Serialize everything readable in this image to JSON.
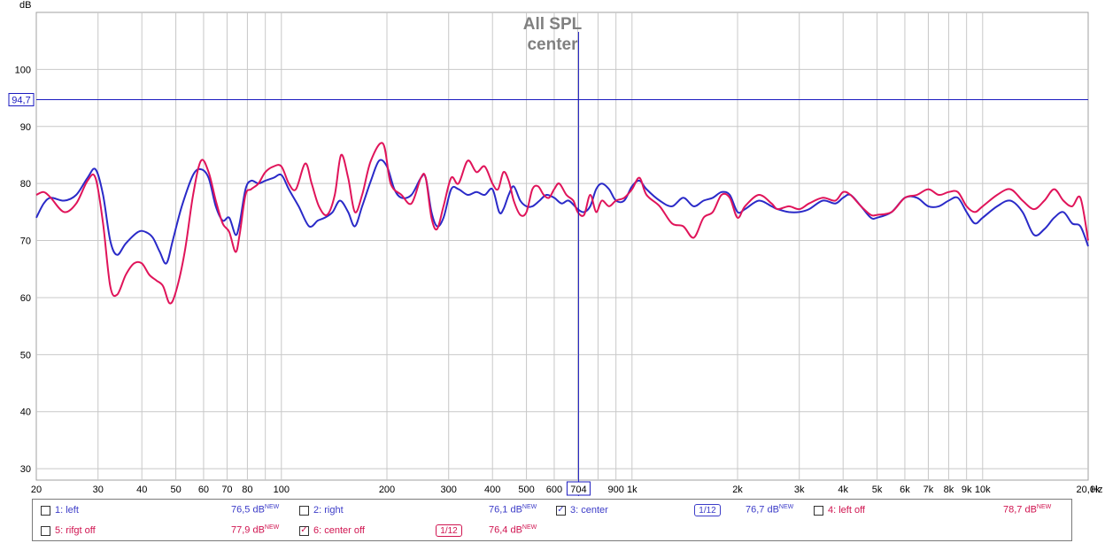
{
  "chart_data": {
    "type": "line",
    "title": "All SPL",
    "subtitle": "center",
    "ylabel": "dB",
    "xunit": "Hz",
    "xscale": "log",
    "xlim": [
      20,
      20000
    ],
    "ylim": [
      28,
      110
    ],
    "yticks": [
      30,
      40,
      50,
      60,
      70,
      80,
      90,
      100
    ],
    "xticks": [
      {
        "v": 20,
        "label": "20"
      },
      {
        "v": 30,
        "label": "30"
      },
      {
        "v": 40,
        "label": "40"
      },
      {
        "v": 50,
        "label": "50"
      },
      {
        "v": 60,
        "label": "60"
      },
      {
        "v": 70,
        "label": "70"
      },
      {
        "v": 80,
        "label": "80"
      },
      {
        "v": 100,
        "label": "100"
      },
      {
        "v": 200,
        "label": "200"
      },
      {
        "v": 300,
        "label": "300"
      },
      {
        "v": 400,
        "label": "400"
      },
      {
        "v": 500,
        "label": "500"
      },
      {
        "v": 600,
        "label": "600"
      },
      {
        "v": 900,
        "label": "900"
      },
      {
        "v": 1000,
        "label": "1k"
      },
      {
        "v": 2000,
        "label": "2k"
      },
      {
        "v": 3000,
        "label": "3k"
      },
      {
        "v": 4000,
        "label": "4k"
      },
      {
        "v": 5000,
        "label": "5k"
      },
      {
        "v": 6000,
        "label": "6k"
      },
      {
        "v": 7000,
        "label": "7k"
      },
      {
        "v": 8000,
        "label": "8k"
      },
      {
        "v": 9000,
        "label": "9k"
      },
      {
        "v": 10000,
        "label": "10k"
      },
      {
        "v": 20000,
        "label": "20,0k"
      }
    ],
    "grid": true,
    "cursor": {
      "x": 704,
      "x_label": "704",
      "y": 94.7,
      "y_label": "94,7"
    },
    "series": [
      {
        "name": "3: center",
        "color": "#2a2ac8",
        "points": [
          [
            20,
            74
          ],
          [
            21,
            76.5
          ],
          [
            22,
            77.5
          ],
          [
            24,
            77
          ],
          [
            26,
            78
          ],
          [
            28,
            81
          ],
          [
            29.5,
            82.5
          ],
          [
            31,
            78
          ],
          [
            32.5,
            70
          ],
          [
            34,
            67.5
          ],
          [
            36,
            69.5
          ],
          [
            39,
            71.5
          ],
          [
            41,
            71.5
          ],
          [
            43,
            70.5
          ],
          [
            45,
            68
          ],
          [
            47,
            66
          ],
          [
            49,
            70
          ],
          [
            52,
            76
          ],
          [
            56,
            81.5
          ],
          [
            59,
            82.5
          ],
          [
            62,
            81
          ],
          [
            65,
            76
          ],
          [
            68,
            73.5
          ],
          [
            71,
            74
          ],
          [
            74,
            71
          ],
          [
            76,
            73
          ],
          [
            79,
            79
          ],
          [
            82,
            80.5
          ],
          [
            86,
            80
          ],
          [
            90,
            80.5
          ],
          [
            95,
            81
          ],
          [
            100,
            81.5
          ],
          [
            105,
            79
          ],
          [
            112,
            76
          ],
          [
            120,
            72.5
          ],
          [
            127,
            73.5
          ],
          [
            133,
            74
          ],
          [
            140,
            75
          ],
          [
            147,
            77
          ],
          [
            155,
            75
          ],
          [
            162,
            72.5
          ],
          [
            170,
            76
          ],
          [
            180,
            80.5
          ],
          [
            190,
            84
          ],
          [
            200,
            83
          ],
          [
            210,
            79
          ],
          [
            220,
            77.5
          ],
          [
            235,
            78
          ],
          [
            250,
            81
          ],
          [
            258,
            81
          ],
          [
            268,
            75
          ],
          [
            278,
            72.5
          ],
          [
            290,
            74
          ],
          [
            305,
            79
          ],
          [
            320,
            79
          ],
          [
            340,
            78
          ],
          [
            360,
            78.5
          ],
          [
            380,
            78
          ],
          [
            400,
            79
          ],
          [
            418,
            75
          ],
          [
            430,
            75.5
          ],
          [
            445,
            78
          ],
          [
            460,
            79.5
          ],
          [
            480,
            77
          ],
          [
            500,
            76
          ],
          [
            520,
            76
          ],
          [
            545,
            77
          ],
          [
            570,
            78
          ],
          [
            600,
            77.5
          ],
          [
            630,
            76.5
          ],
          [
            660,
            77
          ],
          [
            700,
            75.5
          ],
          [
            730,
            75
          ],
          [
            760,
            76
          ],
          [
            790,
            79
          ],
          [
            820,
            80
          ],
          [
            860,
            79
          ],
          [
            900,
            77
          ],
          [
            950,
            77
          ],
          [
            1000,
            79.5
          ],
          [
            1050,
            80.5
          ],
          [
            1100,
            79
          ],
          [
            1200,
            77
          ],
          [
            1300,
            76
          ],
          [
            1400,
            77.5
          ],
          [
            1500,
            76
          ],
          [
            1600,
            77
          ],
          [
            1700,
            77.5
          ],
          [
            1800,
            78.5
          ],
          [
            1900,
            78
          ],
          [
            2000,
            75
          ],
          [
            2100,
            75.5
          ],
          [
            2300,
            77
          ],
          [
            2500,
            76
          ],
          [
            2600,
            75.5
          ],
          [
            2800,
            75
          ],
          [
            3000,
            75
          ],
          [
            3200,
            75.5
          ],
          [
            3500,
            77
          ],
          [
            3800,
            76.5
          ],
          [
            4000,
            77.5
          ],
          [
            4200,
            78
          ],
          [
            4500,
            76
          ],
          [
            4800,
            74
          ],
          [
            5000,
            74
          ],
          [
            5500,
            75
          ],
          [
            6000,
            77.5
          ],
          [
            6500,
            77.5
          ],
          [
            7000,
            76
          ],
          [
            7500,
            76
          ],
          [
            8000,
            77
          ],
          [
            8500,
            77.5
          ],
          [
            9000,
            75
          ],
          [
            9500,
            73
          ],
          [
            10000,
            74
          ],
          [
            11000,
            76
          ],
          [
            12000,
            77
          ],
          [
            13000,
            75
          ],
          [
            14000,
            71
          ],
          [
            15000,
            72
          ],
          [
            16000,
            74
          ],
          [
            17000,
            75
          ],
          [
            18000,
            73
          ],
          [
            19000,
            72.5
          ],
          [
            20000,
            69
          ]
        ]
      },
      {
        "name": "6: center off",
        "color": "#e0145a",
        "points": [
          [
            20,
            78
          ],
          [
            21,
            78.5
          ],
          [
            22,
            77.5
          ],
          [
            24,
            75
          ],
          [
            26,
            76.5
          ],
          [
            28,
            80.5
          ],
          [
            29.5,
            81
          ],
          [
            31,
            73
          ],
          [
            32.5,
            62
          ],
          [
            34,
            60.5
          ],
          [
            36,
            64
          ],
          [
            38,
            66
          ],
          [
            40,
            66
          ],
          [
            42,
            64
          ],
          [
            44,
            63
          ],
          [
            46,
            62
          ],
          [
            48,
            59
          ],
          [
            50,
            61
          ],
          [
            53,
            68
          ],
          [
            56,
            78
          ],
          [
            59,
            84
          ],
          [
            62,
            82
          ],
          [
            65,
            77
          ],
          [
            68,
            73
          ],
          [
            71,
            71.5
          ],
          [
            74,
            68
          ],
          [
            76,
            71
          ],
          [
            79,
            78
          ],
          [
            82,
            79
          ],
          [
            86,
            80
          ],
          [
            90,
            82
          ],
          [
            95,
            83
          ],
          [
            100,
            83
          ],
          [
            105,
            80
          ],
          [
            110,
            79
          ],
          [
            117,
            83.5
          ],
          [
            122,
            80
          ],
          [
            128,
            76
          ],
          [
            135,
            74.5
          ],
          [
            142,
            78
          ],
          [
            148,
            85
          ],
          [
            155,
            81
          ],
          [
            162,
            75
          ],
          [
            170,
            78
          ],
          [
            180,
            84
          ],
          [
            195,
            87
          ],
          [
            205,
            80
          ],
          [
            220,
            78
          ],
          [
            235,
            76.5
          ],
          [
            250,
            81
          ],
          [
            258,
            81
          ],
          [
            268,
            74
          ],
          [
            278,
            72
          ],
          [
            290,
            76
          ],
          [
            305,
            81
          ],
          [
            320,
            80
          ],
          [
            340,
            84
          ],
          [
            360,
            82
          ],
          [
            380,
            83
          ],
          [
            400,
            80
          ],
          [
            415,
            79
          ],
          [
            430,
            82
          ],
          [
            445,
            80.5
          ],
          [
            460,
            77
          ],
          [
            480,
            74.5
          ],
          [
            500,
            75
          ],
          [
            520,
            79
          ],
          [
            540,
            79.5
          ],
          [
            560,
            78
          ],
          [
            580,
            77.5
          ],
          [
            600,
            79
          ],
          [
            620,
            80
          ],
          [
            650,
            78
          ],
          [
            680,
            77
          ],
          [
            700,
            75
          ],
          [
            730,
            74.5
          ],
          [
            760,
            78
          ],
          [
            790,
            75
          ],
          [
            820,
            77
          ],
          [
            860,
            76
          ],
          [
            900,
            77
          ],
          [
            950,
            77.5
          ],
          [
            1000,
            79
          ],
          [
            1050,
            81
          ],
          [
            1100,
            78
          ],
          [
            1200,
            76
          ],
          [
            1300,
            73
          ],
          [
            1400,
            72.5
          ],
          [
            1500,
            70.5
          ],
          [
            1600,
            74
          ],
          [
            1700,
            75
          ],
          [
            1800,
            78
          ],
          [
            1900,
            77.5
          ],
          [
            2000,
            74
          ],
          [
            2100,
            76
          ],
          [
            2300,
            78
          ],
          [
            2500,
            76.5
          ],
          [
            2600,
            75.5
          ],
          [
            2800,
            76
          ],
          [
            3000,
            75.5
          ],
          [
            3200,
            76.5
          ],
          [
            3500,
            77.5
          ],
          [
            3800,
            77
          ],
          [
            4000,
            78.5
          ],
          [
            4200,
            78
          ],
          [
            4500,
            76
          ],
          [
            4800,
            74.5
          ],
          [
            5000,
            74.5
          ],
          [
            5500,
            75
          ],
          [
            6000,
            77.5
          ],
          [
            6500,
            78
          ],
          [
            7000,
            79
          ],
          [
            7500,
            78
          ],
          [
            8000,
            78.5
          ],
          [
            8500,
            78.5
          ],
          [
            9000,
            76
          ],
          [
            9500,
            75
          ],
          [
            10000,
            76
          ],
          [
            11000,
            78
          ],
          [
            12000,
            79
          ],
          [
            13000,
            77
          ],
          [
            14000,
            75.5
          ],
          [
            15000,
            77
          ],
          [
            16000,
            79
          ],
          [
            17000,
            77
          ],
          [
            18000,
            76
          ],
          [
            19000,
            77.5
          ],
          [
            20000,
            70
          ]
        ]
      }
    ]
  },
  "legend": {
    "items": [
      {
        "label": "1: left",
        "value": "76,5 dB",
        "sup": "NEW",
        "color": "#3c3cc8",
        "checked": false
      },
      {
        "label": "2: right",
        "value": "76,1 dB",
        "sup": "NEW",
        "color": "#3c3cc8",
        "checked": false
      },
      {
        "label": "3: center",
        "value": "76,7 dB",
        "sup": "NEW",
        "color": "#3c3cc8",
        "checked": true,
        "smoothing": "1/12"
      },
      {
        "label": "4: left off",
        "value": "78,7 dB",
        "sup": "NEW",
        "color": "#d01450",
        "checked": false
      },
      {
        "label": "5: rifgt off",
        "value": "77,9 dB",
        "sup": "NEW",
        "color": "#d01450",
        "checked": false
      },
      {
        "label": "6: center off",
        "value": "76,4 dB",
        "sup": "NEW",
        "color": "#d01450",
        "checked": true,
        "smoothing": "1/12"
      }
    ]
  }
}
